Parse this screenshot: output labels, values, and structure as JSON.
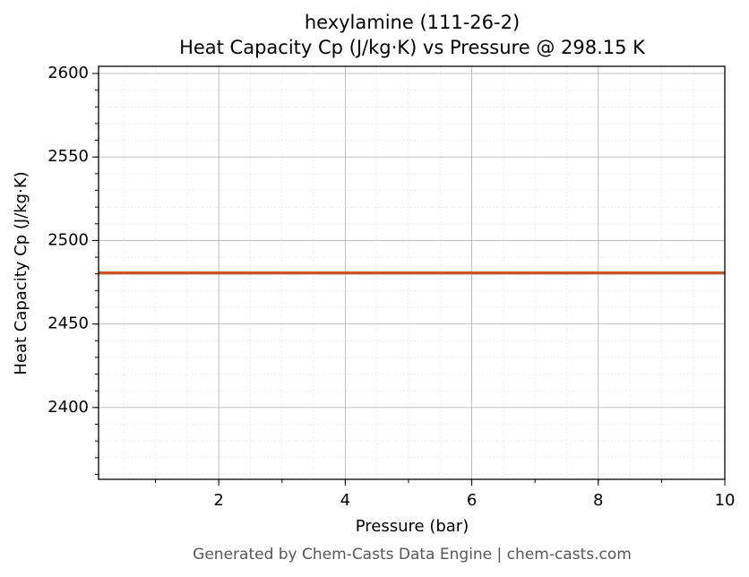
{
  "chart_data": {
    "type": "line",
    "title": "hexylamine (111-26-2)",
    "subtitle": "Heat Capacity Cp (J/kg·K) vs Pressure @ 298.15 K",
    "x_label": "Pressure (bar)",
    "y_label": "Heat Capacity Cp (J/kg·K)",
    "footer": "Generated by Chem-Casts Data Engine | chem-casts.com",
    "x": [
      0.1,
      10
    ],
    "series": [
      {
        "color": "#c8562a",
        "values": [
          2480.6,
          2480.6
        ]
      }
    ],
    "xlim": [
      0.1,
      10
    ],
    "xticks": [
      2,
      4,
      6,
      8,
      10
    ],
    "ylim": [
      2357,
      2604.3
    ],
    "yticks": [
      2400,
      2450,
      2500,
      2550,
      2600
    ],
    "grid": true
  }
}
